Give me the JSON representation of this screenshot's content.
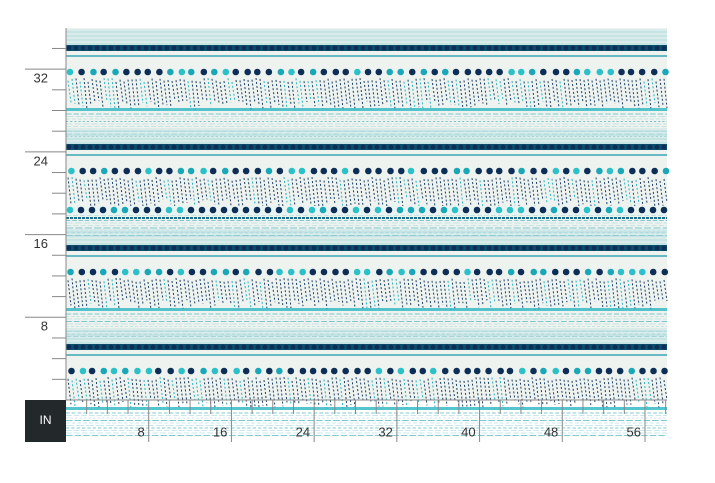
{
  "ruler": {
    "unit": "IN",
    "x_labels": [
      8,
      16,
      24,
      32,
      40,
      48,
      56
    ],
    "y_labels": [
      8,
      16,
      24,
      32
    ]
  }
}
